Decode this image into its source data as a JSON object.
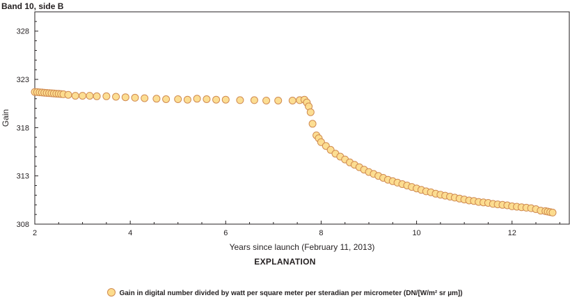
{
  "chart_data": {
    "type": "scatter",
    "title": "Band 10, side B",
    "xlabel": "Years since launch (February 11, 2013)",
    "ylabel": "Gain",
    "xlim": [
      2,
      13.2
    ],
    "ylim": [
      308,
      330
    ],
    "xticks": [
      2,
      4,
      6,
      8,
      10,
      12
    ],
    "yticks": [
      308,
      313,
      318,
      323,
      328
    ],
    "grid": false,
    "legend_position": "bottom-center",
    "legend_heading": "EXPLANATION",
    "legend_label": "Gain in digital number divided by watt per square meter per steradian per micrometer (DN/[W/m² sr µm])",
    "colors": {
      "fill": "#fcdc8d",
      "edge": "#d08a50"
    },
    "series": [
      {
        "points": [
          [
            2.0,
            321.7
          ],
          [
            2.05,
            321.68
          ],
          [
            2.1,
            321.66
          ],
          [
            2.15,
            321.64
          ],
          [
            2.2,
            321.62
          ],
          [
            2.25,
            321.6
          ],
          [
            2.3,
            321.58
          ],
          [
            2.35,
            321.56
          ],
          [
            2.4,
            321.54
          ],
          [
            2.45,
            321.52
          ],
          [
            2.5,
            321.5
          ],
          [
            2.55,
            321.48
          ],
          [
            2.6,
            321.46
          ],
          [
            2.7,
            321.4
          ],
          [
            2.85,
            321.3
          ],
          [
            3.0,
            321.3
          ],
          [
            3.15,
            321.3
          ],
          [
            3.3,
            321.25
          ],
          [
            3.5,
            321.25
          ],
          [
            3.7,
            321.2
          ],
          [
            3.9,
            321.15
          ],
          [
            4.1,
            321.1
          ],
          [
            4.3,
            321.05
          ],
          [
            4.55,
            321.0
          ],
          [
            4.75,
            320.95
          ],
          [
            5.0,
            320.95
          ],
          [
            5.2,
            320.9
          ],
          [
            5.4,
            321.0
          ],
          [
            5.6,
            320.95
          ],
          [
            5.8,
            320.9
          ],
          [
            6.0,
            320.9
          ],
          [
            6.3,
            320.85
          ],
          [
            6.6,
            320.85
          ],
          [
            6.85,
            320.8
          ],
          [
            7.1,
            320.8
          ],
          [
            7.4,
            320.8
          ],
          [
            7.55,
            320.85
          ],
          [
            7.65,
            320.9
          ],
          [
            7.7,
            320.6
          ],
          [
            7.74,
            320.2
          ],
          [
            7.78,
            319.6
          ],
          [
            7.82,
            318.4
          ],
          [
            7.9,
            317.2
          ],
          [
            7.95,
            316.9
          ],
          [
            8.0,
            316.5
          ],
          [
            8.1,
            316.1
          ],
          [
            8.2,
            315.7
          ],
          [
            8.3,
            315.3
          ],
          [
            8.4,
            315.0
          ],
          [
            8.5,
            314.7
          ],
          [
            8.6,
            314.4
          ],
          [
            8.7,
            314.15
          ],
          [
            8.8,
            313.9
          ],
          [
            8.9,
            313.65
          ],
          [
            9.0,
            313.4
          ],
          [
            9.1,
            313.2
          ],
          [
            9.2,
            313.0
          ],
          [
            9.3,
            312.8
          ],
          [
            9.4,
            312.6
          ],
          [
            9.5,
            312.45
          ],
          [
            9.6,
            312.3
          ],
          [
            9.7,
            312.15
          ],
          [
            9.8,
            312.0
          ],
          [
            9.9,
            311.85
          ],
          [
            10.0,
            311.7
          ],
          [
            10.1,
            311.55
          ],
          [
            10.2,
            311.4
          ],
          [
            10.3,
            311.3
          ],
          [
            10.4,
            311.15
          ],
          [
            10.5,
            311.05
          ],
          [
            10.6,
            310.95
          ],
          [
            10.7,
            310.85
          ],
          [
            10.8,
            310.75
          ],
          [
            10.9,
            310.65
          ],
          [
            11.0,
            310.55
          ],
          [
            11.1,
            310.45
          ],
          [
            11.2,
            310.4
          ],
          [
            11.3,
            310.3
          ],
          [
            11.4,
            310.25
          ],
          [
            11.5,
            310.2
          ],
          [
            11.6,
            310.1
          ],
          [
            11.7,
            310.05
          ],
          [
            11.8,
            310.0
          ],
          [
            11.9,
            309.95
          ],
          [
            12.0,
            309.85
          ],
          [
            12.1,
            309.8
          ],
          [
            12.2,
            309.75
          ],
          [
            12.3,
            309.7
          ],
          [
            12.4,
            309.65
          ],
          [
            12.5,
            309.55
          ],
          [
            12.6,
            309.4
          ],
          [
            12.7,
            309.35
          ],
          [
            12.75,
            309.3
          ],
          [
            12.8,
            309.25
          ],
          [
            12.85,
            309.2
          ]
        ]
      }
    ]
  }
}
